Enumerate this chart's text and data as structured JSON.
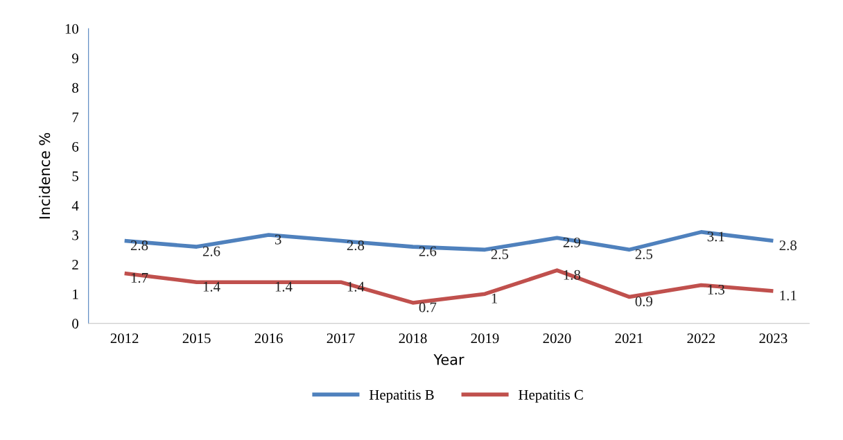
{
  "chart_data": {
    "type": "line",
    "xlabel": "Year",
    "ylabel": "Incidence %",
    "categories": [
      "2012",
      "2015",
      "2016",
      "2017",
      "2018",
      "2019",
      "2020",
      "2021",
      "2022",
      "2023"
    ],
    "series": [
      {
        "name": "Hepatitis B",
        "color": "#4f81bd",
        "values": [
          2.8,
          2.6,
          3,
          2.8,
          2.6,
          2.5,
          2.9,
          2.5,
          3.1,
          2.8
        ]
      },
      {
        "name": "Hepatitis C",
        "color": "#c0504d",
        "values": [
          1.7,
          1.4,
          1.4,
          1.4,
          0.7,
          1,
          1.8,
          0.9,
          1.3,
          1.1
        ]
      }
    ],
    "ylim": [
      0,
      10
    ],
    "yticks": [
      0,
      1,
      2,
      3,
      4,
      5,
      6,
      7,
      8,
      9,
      10
    ],
    "grid": false,
    "legend": "bottom",
    "data_labels": true,
    "marker": "none",
    "line_style": "solid"
  }
}
